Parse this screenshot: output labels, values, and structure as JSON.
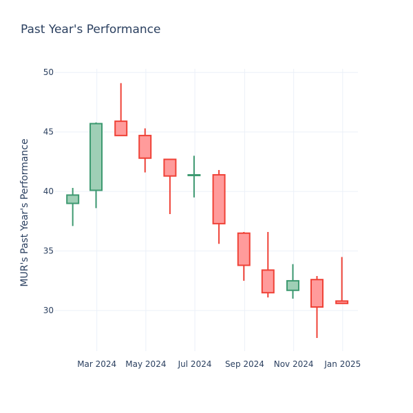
{
  "chart_data": {
    "type": "candlestick",
    "title": "Past Year's Performance",
    "ylabel": "MUR's Past Year's Performance",
    "xlabel": "",
    "ylim": [
      26.6,
      50.3
    ],
    "yticks": [
      30,
      35,
      40,
      45,
      50
    ],
    "xlim": [
      "2024-01-09",
      "2025-01-20"
    ],
    "xticks": [
      {
        "date": "2024-03-01",
        "label": "Mar 2024"
      },
      {
        "date": "2024-05-01",
        "label": "May 2024"
      },
      {
        "date": "2024-07-01",
        "label": "Jul 2024"
      },
      {
        "date": "2024-09-01",
        "label": "Sep 2024"
      },
      {
        "date": "2024-11-01",
        "label": "Nov 2024"
      },
      {
        "date": "2025-01-01",
        "label": "Jan 2025"
      }
    ],
    "grid": true,
    "increasing_color": "#3d9970",
    "increasing_fill": "#9fcfb6",
    "decreasing_color": "#ef4136",
    "decreasing_fill": "#ff9b9b",
    "candles": [
      {
        "date": "2024-01-31",
        "open": 39.0,
        "high": 40.3,
        "low": 37.1,
        "close": 39.7
      },
      {
        "date": "2024-02-29",
        "open": 40.1,
        "high": 45.8,
        "low": 38.6,
        "close": 45.7
      },
      {
        "date": "2024-03-31",
        "open": 45.9,
        "high": 49.1,
        "low": 44.7,
        "close": 44.7
      },
      {
        "date": "2024-04-30",
        "open": 44.7,
        "high": 45.3,
        "low": 41.6,
        "close": 42.8
      },
      {
        "date": "2024-05-31",
        "open": 42.7,
        "high": 42.7,
        "low": 38.1,
        "close": 41.3
      },
      {
        "date": "2024-06-30",
        "open": 41.4,
        "high": 43.0,
        "low": 39.5,
        "close": 41.4
      },
      {
        "date": "2024-07-31",
        "open": 41.4,
        "high": 41.8,
        "low": 35.6,
        "close": 37.3
      },
      {
        "date": "2024-08-31",
        "open": 36.5,
        "high": 36.6,
        "low": 32.5,
        "close": 33.8
      },
      {
        "date": "2024-09-30",
        "open": 33.4,
        "high": 36.6,
        "low": 31.1,
        "close": 31.5
      },
      {
        "date": "2024-10-31",
        "open": 31.7,
        "high": 33.9,
        "low": 31.0,
        "close": 32.5
      },
      {
        "date": "2024-11-30",
        "open": 32.6,
        "high": 32.9,
        "low": 27.7,
        "close": 30.3
      },
      {
        "date": "2024-12-31",
        "open": 30.8,
        "high": 34.5,
        "low": 30.6,
        "close": 30.6
      }
    ]
  }
}
